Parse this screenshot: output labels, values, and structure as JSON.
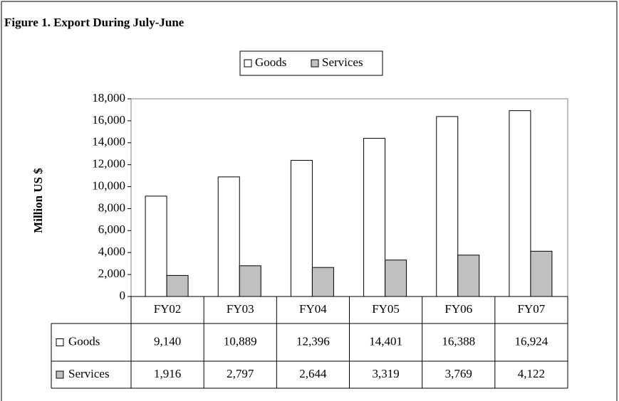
{
  "chart_data": {
    "type": "bar",
    "title": "Figure 1. Export During July-June",
    "y_label": "Million US $",
    "categories": [
      "FY02",
      "FY03",
      "FY04",
      "FY05",
      "FY06",
      "FY07"
    ],
    "series": [
      {
        "name": "Goods",
        "color": "#ffffff",
        "values": [
          9140,
          10889,
          12396,
          14401,
          16388,
          16924
        ],
        "value_labels": [
          "9,140",
          "10,889",
          "12,396",
          "14,401",
          "16,388",
          "16,924"
        ]
      },
      {
        "name": "Services",
        "color": "#c0c0c0",
        "values": [
          1916,
          2797,
          2644,
          3319,
          3769,
          4122
        ],
        "value_labels": [
          "1,916",
          "2,797",
          "2,644",
          "3,319",
          "3,769",
          "4,122"
        ]
      }
    ],
    "ylim": [
      0,
      18000
    ],
    "yticks": [
      0,
      {
        "value": 2000,
        "label": "2,000"
      },
      {
        "value": 4000,
        "label": "4,000"
      },
      {
        "value": 6000,
        "label": "6,000"
      },
      {
        "value": 8000,
        "label": "8,000"
      },
      {
        "value": 10000,
        "label": "10,000"
      },
      {
        "value": 12000,
        "label": "12,000"
      },
      {
        "value": 14000,
        "label": "14,000"
      },
      {
        "value": 16000,
        "label": "16,000"
      },
      {
        "value": 18000,
        "label": "18,000"
      }
    ],
    "legend": "top"
  }
}
